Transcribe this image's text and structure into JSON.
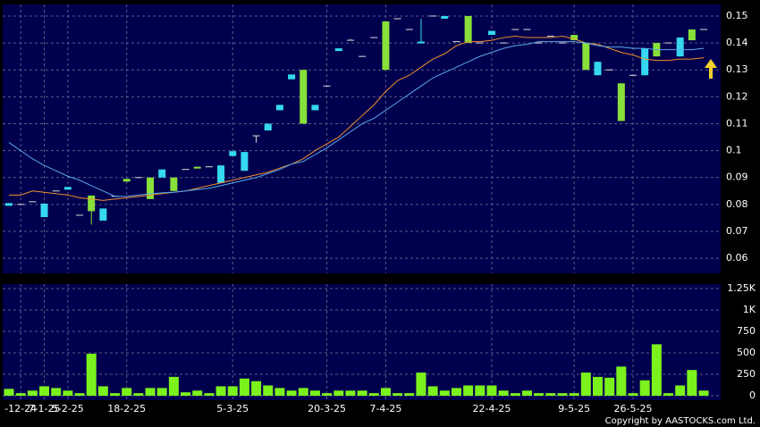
{
  "chart_data": {
    "type": "candlestick",
    "categories": [
      null,
      "-12-24",
      null,
      "7-1-25",
      null,
      "5-2-25",
      null,
      null,
      null,
      null,
      "18-2-25",
      null,
      null,
      null,
      null,
      null,
      null,
      null,
      null,
      "5-3-25",
      null,
      null,
      null,
      null,
      null,
      null,
      null,
      "20-3-25",
      null,
      null,
      null,
      null,
      "7-4-25",
      null,
      null,
      null,
      null,
      null,
      null,
      null,
      null,
      "22-4-25",
      null,
      null,
      null,
      null,
      null,
      null,
      "9-5-25",
      null,
      null,
      null,
      null,
      "26-5-25",
      null,
      null,
      null,
      null,
      null,
      null
    ],
    "open": [
      0.0805,
      0.08,
      0.081,
      0.0803,
      0.085,
      0.0865,
      0.076,
      0.0775,
      0.0785,
      0.083,
      0.0885,
      0.09,
      0.082,
      0.093,
      0.085,
      0.093,
      0.0935,
      0.094,
      0.0945,
      0.0998,
      0.0995,
      0.1055,
      0.11,
      0.117,
      0.1283,
      0.11,
      0.117,
      0.124,
      0.138,
      0.141,
      0.135,
      0.142,
      0.13,
      0.149,
      0.145,
      0.1405,
      0.15,
      0.15,
      0.1405,
      0.14,
      0.14,
      0.1445,
      0.14,
      0.145,
      0.145,
      0.14,
      0.1425,
      0.14,
      0.141,
      0.13,
      0.133,
      0.13,
      0.111,
      0.128,
      0.138,
      0.135,
      0.14,
      0.142,
      0.141,
      0.145
    ],
    "high": [
      0.0805,
      0.08,
      0.081,
      0.0803,
      0.085,
      0.0865,
      0.076,
      0.0833,
      0.0785,
      0.083,
      0.0895,
      0.09,
      0.09,
      0.093,
      0.09,
      0.093,
      0.094,
      0.094,
      0.0945,
      0.0998,
      0.0995,
      0.1055,
      0.11,
      0.117,
      0.1283,
      0.13,
      0.117,
      0.124,
      0.138,
      0.1415,
      0.135,
      0.142,
      0.148,
      0.149,
      0.145,
      0.149,
      0.15,
      0.15,
      0.1405,
      0.15,
      0.14,
      0.1445,
      0.14,
      0.145,
      0.145,
      0.14,
      0.1425,
      0.14,
      0.143,
      0.14,
      0.133,
      0.13,
      0.125,
      0.128,
      0.138,
      0.14,
      0.14,
      0.142,
      0.145,
      0.145
    ],
    "low": [
      0.0795,
      0.08,
      0.081,
      0.0753,
      0.085,
      0.0855,
      0.076,
      0.0725,
      0.074,
      0.083,
      0.0885,
      0.09,
      0.082,
      0.09,
      0.085,
      0.093,
      0.0935,
      0.094,
      0.088,
      0.098,
      0.0925,
      0.103,
      0.1075,
      0.115,
      0.1265,
      0.11,
      0.115,
      0.124,
      0.137,
      0.141,
      0.135,
      0.142,
      0.13,
      0.149,
      0.145,
      0.14,
      0.15,
      0.149,
      0.1405,
      0.14,
      0.14,
      0.143,
      0.14,
      0.145,
      0.145,
      0.14,
      0.1425,
      0.14,
      0.141,
      0.13,
      0.128,
      0.13,
      0.111,
      0.128,
      0.128,
      0.135,
      0.14,
      0.135,
      0.141,
      0.145
    ],
    "close": [
      0.0795,
      0.08,
      0.081,
      0.0753,
      0.085,
      0.0855,
      0.076,
      0.0833,
      0.074,
      0.083,
      0.0895,
      0.09,
      0.09,
      0.09,
      0.09,
      0.093,
      0.094,
      0.094,
      0.088,
      0.098,
      0.0925,
      0.1055,
      0.1075,
      0.115,
      0.1265,
      0.13,
      0.115,
      0.124,
      0.137,
      0.141,
      0.135,
      0.142,
      0.148,
      0.149,
      0.145,
      0.14,
      0.15,
      0.149,
      0.1405,
      0.15,
      0.14,
      0.143,
      0.14,
      0.145,
      0.145,
      0.14,
      0.1425,
      0.14,
      0.143,
      0.14,
      0.128,
      0.13,
      0.125,
      0.128,
      0.128,
      0.14,
      0.14,
      0.135,
      0.145,
      0.145
    ],
    "volume": [
      80,
      30,
      60,
      110,
      90,
      60,
      30,
      490,
      110,
      30,
      90,
      30,
      90,
      90,
      220,
      40,
      60,
      30,
      110,
      110,
      200,
      170,
      120,
      90,
      60,
      90,
      60,
      30,
      60,
      60,
      60,
      30,
      90,
      30,
      30,
      270,
      110,
      60,
      90,
      120,
      120,
      120,
      60,
      30,
      60,
      30,
      30,
      30,
      30,
      270,
      220,
      210,
      340,
      30,
      180,
      600,
      30,
      120,
      300,
      60
    ],
    "ma_lines": [
      {
        "color": "#f0902c",
        "values": [
          0.0835,
          0.0835,
          0.085,
          0.0845,
          0.084,
          0.0835,
          0.0825,
          0.082,
          0.0815,
          0.082,
          0.0825,
          0.083,
          0.0835,
          0.084,
          0.0845,
          0.085,
          0.086,
          0.087,
          0.088,
          0.089,
          0.09,
          0.091,
          0.092,
          0.0935,
          0.095,
          0.097,
          0.1,
          0.1025,
          0.105,
          0.109,
          0.113,
          0.117,
          0.122,
          0.126,
          0.128,
          0.131,
          0.134,
          0.136,
          0.139,
          0.1405,
          0.1405,
          0.141,
          0.142,
          0.1425,
          0.142,
          0.142,
          0.142,
          0.1425,
          0.1415,
          0.14,
          0.1395,
          0.138,
          0.1365,
          0.1355,
          0.134,
          0.1335,
          0.1335,
          0.134,
          0.134,
          0.1345
        ]
      },
      {
        "color": "#5aa8e8",
        "values": [
          0.103,
          0.1,
          0.097,
          0.0945,
          0.0925,
          0.0905,
          0.089,
          0.087,
          0.085,
          0.083,
          0.083,
          0.0835,
          0.084,
          0.0843,
          0.0845,
          0.085,
          0.0855,
          0.086,
          0.087,
          0.088,
          0.089,
          0.09,
          0.0915,
          0.093,
          0.095,
          0.096,
          0.0985,
          0.101,
          0.104,
          0.107,
          0.11,
          0.112,
          0.115,
          0.118,
          0.121,
          0.124,
          0.127,
          0.129,
          0.131,
          0.133,
          0.135,
          0.1365,
          0.138,
          0.139,
          0.1395,
          0.1405,
          0.1405,
          0.1405,
          0.1405,
          0.14,
          0.139,
          0.1385,
          0.1385,
          0.138,
          0.138,
          0.1375,
          0.1375,
          0.1375,
          0.1375,
          0.138
        ]
      }
    ],
    "up_color": "#88e03a",
    "down_color": "#35d8f0",
    "flat_color": "#dddddd",
    "volume_color": "#7cf21c",
    "ylim": [
      0.0544,
      0.1543
    ],
    "yticks": [
      0.06,
      0.07,
      0.08,
      0.09,
      0.1,
      0.11,
      0.12,
      0.13,
      0.14,
      0.15
    ],
    "volume_ylim": [
      -52,
      1302
    ],
    "volume_yticks": [
      0,
      250,
      500,
      750,
      {
        "value": 1000,
        "label": "1K"
      },
      {
        "value": 1250,
        "label": "1.25K"
      }
    ],
    "grid": true,
    "copyright": "Copyright by AASTOCKS.com Ltd."
  }
}
